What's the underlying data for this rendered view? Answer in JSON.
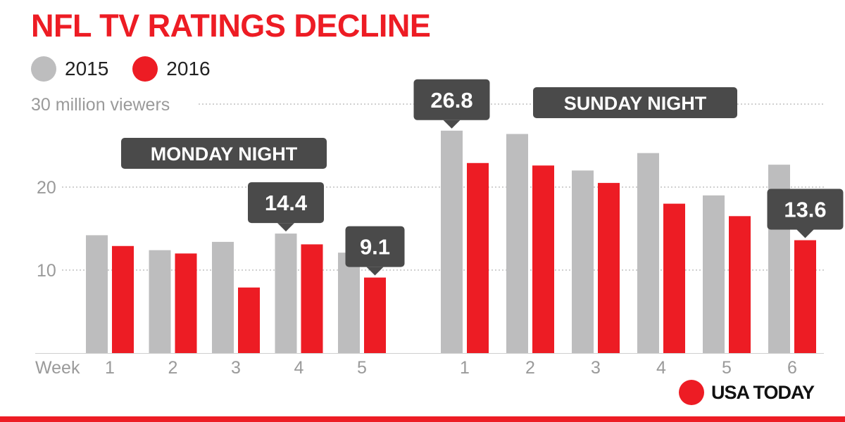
{
  "chart_data": {
    "type": "bar",
    "title": "NFL TV RATINGS DECLINE",
    "ylabel": "30 million viewers",
    "xlabel": "Week",
    "ylim": [
      0,
      30
    ],
    "yticks": [
      "10",
      "20"
    ],
    "grid": true,
    "legend_placement": "top-left",
    "legend": [
      {
        "name": "2015",
        "color": "#bdbdbe"
      },
      {
        "name": "2016",
        "color": "#ed1c24"
      }
    ],
    "groups": [
      {
        "label": "MONDAY NIGHT",
        "categories": [
          "1",
          "2",
          "3",
          "4",
          "5"
        ],
        "series": [
          {
            "name": "2015",
            "values": [
              14.2,
              12.4,
              13.4,
              14.4,
              12.1
            ]
          },
          {
            "name": "2016",
            "values": [
              12.9,
              12.0,
              7.9,
              13.1,
              9.1
            ]
          }
        ],
        "callouts": [
          {
            "text": "14.4",
            "category_index": 3,
            "series_index": 0
          },
          {
            "text": "9.1",
            "category_index": 4,
            "series_index": 1
          }
        ]
      },
      {
        "label": "SUNDAY NIGHT",
        "categories": [
          "1",
          "2",
          "3",
          "4",
          "5",
          "6"
        ],
        "series": [
          {
            "name": "2015",
            "values": [
              26.8,
              26.4,
              22.0,
              24.1,
              19.0,
              22.7
            ]
          },
          {
            "name": "2016",
            "values": [
              22.9,
              22.6,
              20.5,
              18.0,
              16.5,
              13.6
            ]
          }
        ],
        "callouts": [
          {
            "text": "26.8",
            "category_index": 0,
            "series_index": 0
          },
          {
            "text": "13.6",
            "category_index": 5,
            "series_index": 1
          }
        ]
      }
    ]
  },
  "colors": {
    "accent": "#ed1c24",
    "gray_bar": "#bdbdbe",
    "callout_bg": "#4a4a4a",
    "axis_text": "#9a9a9a",
    "grid": "#b5b5b5"
  },
  "brand": {
    "name": "USA TODAY",
    "icon": "red-circle-logo"
  }
}
